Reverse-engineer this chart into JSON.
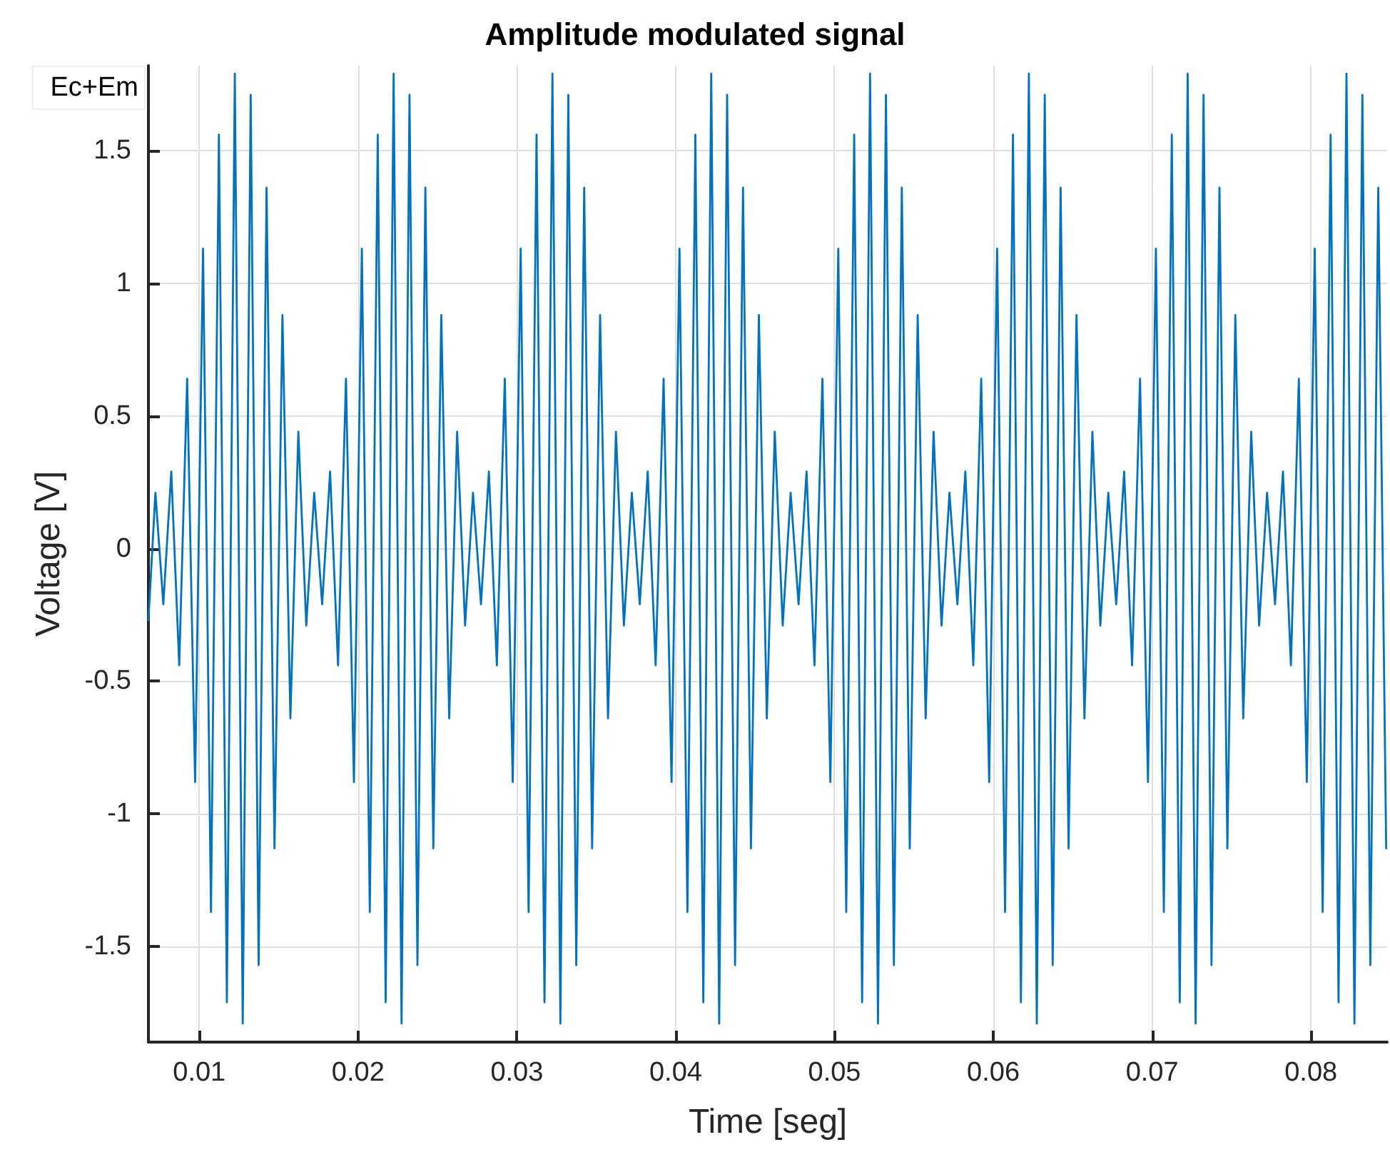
{
  "chart_data": {
    "type": "line",
    "title": "Amplitude modulated signal",
    "xlabel": "Time [seg]",
    "ylabel": "Voltage [V]",
    "annotations": [
      "Ec+Em"
    ],
    "xlim": [
      0.0068,
      0.0848
    ],
    "xticks": [
      0.01,
      0.02,
      0.03,
      0.04,
      0.05,
      0.06,
      0.07,
      0.08
    ],
    "ylim": [
      -1.86,
      1.82
    ],
    "yticks": [
      -1.5,
      -1,
      -0.5,
      0,
      0.5,
      1,
      1.5
    ],
    "grid": true,
    "marker": "none",
    "line_style": "solid",
    "series": [
      {
        "color": "#0072bd",
        "x": [
          0.0068,
          0.00724,
          0.00774,
          0.00824,
          0.00874,
          0.00924,
          0.00974,
          0.01024,
          0.01074,
          0.01124,
          0.01174,
          0.01224,
          0.01274,
          0.01324,
          0.01374,
          0.01424,
          0.01474,
          0.01524,
          0.01574,
          0.01624,
          0.01674,
          0.01724,
          0.01774,
          0.01824,
          0.01874,
          0.01924,
          0.01974,
          0.02024,
          0.02074,
          0.02124,
          0.02174,
          0.02224,
          0.02274,
          0.02324,
          0.02374,
          0.02424,
          0.02474,
          0.02524,
          0.02574,
          0.02624,
          0.02674,
          0.02724,
          0.02774,
          0.02824,
          0.02874,
          0.02924,
          0.02974,
          0.03024,
          0.03074,
          0.03124,
          0.03174,
          0.03224,
          0.03274,
          0.03324,
          0.03374,
          0.03424,
          0.03474,
          0.03524,
          0.03574,
          0.03624,
          0.03674,
          0.03724,
          0.03774,
          0.03824,
          0.03874,
          0.03924,
          0.03974,
          0.04024,
          0.04074,
          0.04124,
          0.04174,
          0.04224,
          0.04274,
          0.04324,
          0.04374,
          0.04424,
          0.04474,
          0.04524,
          0.04574,
          0.04624,
          0.04674,
          0.04724,
          0.04774,
          0.04824,
          0.04874,
          0.04924,
          0.04974,
          0.05024,
          0.05074,
          0.05124,
          0.05174,
          0.05224,
          0.05274,
          0.05324,
          0.05374,
          0.05424,
          0.05474,
          0.05524,
          0.05574,
          0.05624,
          0.05674,
          0.05724,
          0.05774,
          0.05824,
          0.05874,
          0.05924,
          0.05974,
          0.06024,
          0.06074,
          0.06124,
          0.06174,
          0.06224,
          0.06274,
          0.06324,
          0.06374,
          0.06424,
          0.06474,
          0.06524,
          0.06574,
          0.06624,
          0.06674,
          0.06724,
          0.06774,
          0.06824,
          0.06874,
          0.06924,
          0.06974,
          0.07024,
          0.07074,
          0.07124,
          0.07174,
          0.07224,
          0.07274,
          0.07324,
          0.07374,
          0.07424,
          0.07474,
          0.07524,
          0.07574,
          0.07624,
          0.07674,
          0.07724,
          0.07774,
          0.07824,
          0.07874,
          0.07924,
          0.07974,
          0.08024,
          0.08074,
          0.08124,
          0.08174,
          0.08224,
          0.08274,
          0.08324,
          0.08374,
          0.08424,
          0.08474
        ],
        "values": [
          -0.27,
          0.21,
          -0.21,
          0.29,
          -0.44,
          0.64,
          -0.88,
          1.13,
          -1.37,
          1.56,
          -1.71,
          1.79,
          -1.79,
          1.71,
          -1.57,
          1.36,
          -1.13,
          0.88,
          -0.64,
          0.44,
          -0.29,
          0.21,
          -0.21,
          0.29,
          -0.44,
          0.64,
          -0.88,
          1.13,
          -1.37,
          1.56,
          -1.71,
          1.79,
          -1.79,
          1.71,
          -1.57,
          1.36,
          -1.13,
          0.88,
          -0.64,
          0.44,
          -0.29,
          0.21,
          -0.21,
          0.29,
          -0.44,
          0.64,
          -0.88,
          1.13,
          -1.37,
          1.56,
          -1.71,
          1.79,
          -1.79,
          1.71,
          -1.57,
          1.36,
          -1.13,
          0.88,
          -0.64,
          0.44,
          -0.29,
          0.21,
          -0.21,
          0.29,
          -0.44,
          0.64,
          -0.88,
          1.13,
          -1.37,
          1.56,
          -1.71,
          1.79,
          -1.79,
          1.71,
          -1.57,
          1.36,
          -1.13,
          0.88,
          -0.64,
          0.44,
          -0.29,
          0.21,
          -0.21,
          0.29,
          -0.44,
          0.64,
          -0.88,
          1.13,
          -1.37,
          1.56,
          -1.71,
          1.79,
          -1.79,
          1.71,
          -1.57,
          1.36,
          -1.13,
          0.88,
          -0.64,
          0.44,
          -0.29,
          0.21,
          -0.21,
          0.29,
          -0.44,
          0.64,
          -0.88,
          1.13,
          -1.37,
          1.56,
          -1.71,
          1.79,
          -1.79,
          1.71,
          -1.57,
          1.36,
          -1.13,
          0.88,
          -0.64,
          0.44,
          -0.29,
          0.21,
          -0.21,
          0.29,
          -0.44,
          0.64,
          -0.88,
          1.13,
          -1.37,
          1.56,
          -1.71,
          1.79,
          -1.79,
          1.71,
          -1.57,
          1.36,
          -1.13,
          0.88,
          -0.64,
          0.44,
          -0.29,
          0.21,
          -0.21,
          0.29,
          -0.44,
          0.64,
          -0.88,
          1.13,
          -1.37,
          1.56,
          -1.71,
          1.79,
          -1.79,
          1.71,
          -1.57,
          1.36,
          -1.13
        ]
      }
    ]
  }
}
